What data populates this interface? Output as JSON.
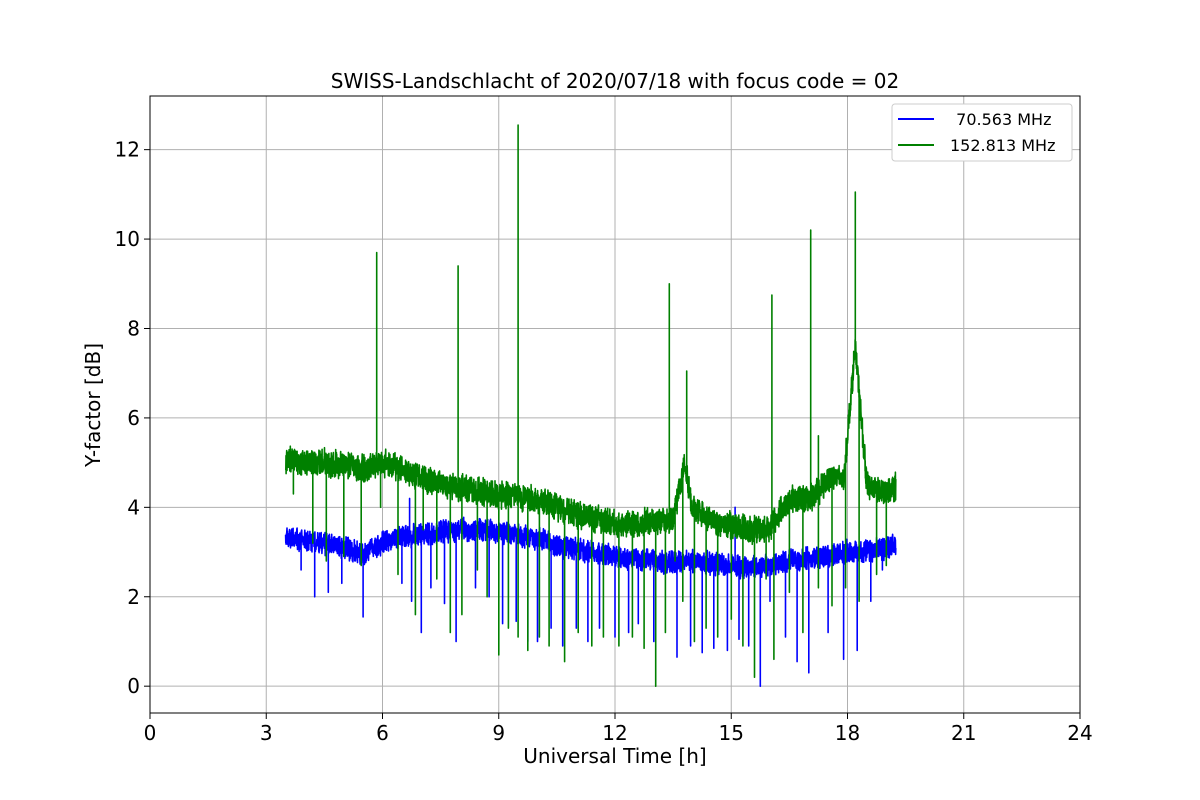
{
  "chart_data": {
    "type": "line",
    "title": "SWISS-Landschlacht of 2020/07/18 with focus code = 02",
    "xlabel": "Universal Time [h]",
    "ylabel": "Y-factor [dB]",
    "xlim": [
      0,
      24
    ],
    "ylim": [
      -0.6,
      13.2
    ],
    "xticks": [
      0,
      3,
      6,
      9,
      12,
      15,
      18,
      21,
      24
    ],
    "yticks": [
      0,
      2,
      4,
      6,
      8,
      10,
      12
    ],
    "grid": true,
    "legend_position": "top-right",
    "series": [
      {
        "name": "  70.563 MHz",
        "color": "#0000ff",
        "x": [
          3.5,
          4.0,
          4.5,
          5.0,
          5.5,
          6.0,
          6.5,
          7.0,
          7.5,
          8.0,
          8.5,
          9.0,
          9.5,
          10.0,
          10.5,
          11.0,
          11.5,
          12.0,
          12.5,
          13.0,
          13.5,
          14.0,
          14.5,
          15.0,
          15.5,
          16.0,
          16.5,
          17.0,
          17.5,
          18.0,
          18.5,
          19.0,
          19.25
        ],
        "y": [
          3.3,
          3.25,
          3.2,
          3.1,
          2.95,
          3.2,
          3.35,
          3.4,
          3.45,
          3.5,
          3.5,
          3.45,
          3.4,
          3.3,
          3.15,
          3.05,
          3.0,
          2.9,
          2.85,
          2.8,
          2.75,
          2.8,
          2.75,
          2.7,
          2.65,
          2.7,
          2.8,
          2.85,
          2.9,
          3.0,
          3.0,
          3.1,
          3.15
        ],
        "dips_x": [
          3.9,
          4.25,
          4.6,
          4.95,
          5.5,
          6.5,
          6.75,
          7.0,
          7.25,
          7.6,
          7.9,
          8.4,
          8.75,
          9.1,
          9.45,
          9.75,
          10.0,
          10.35,
          10.65,
          11.0,
          11.3,
          11.6,
          12.0,
          12.35,
          12.6,
          13.0,
          13.6,
          13.95,
          14.25,
          14.55,
          14.9,
          15.2,
          15.45,
          15.75,
          16.0,
          16.4,
          16.7,
          17.0,
          17.5,
          17.9,
          18.25,
          18.6,
          18.9
        ],
        "dips_y": [
          2.6,
          2.0,
          2.1,
          2.3,
          1.55,
          2.3,
          1.9,
          1.2,
          2.2,
          1.85,
          1.0,
          2.2,
          2.0,
          1.4,
          1.45,
          1.0,
          1.0,
          1.3,
          0.9,
          1.3,
          1.0,
          1.3,
          1.1,
          1.2,
          1.4,
          1.0,
          0.65,
          0.9,
          0.75,
          0.85,
          0.8,
          1.05,
          0.9,
          0.0,
          1.9,
          1.1,
          0.55,
          0.3,
          1.2,
          0.6,
          0.8,
          1.9,
          2.6
        ],
        "spikes_x": [
          6.7,
          15.1
        ],
        "spikes_y": [
          4.2,
          4.0
        ]
      },
      {
        "name": "152.813 MHz",
        "color": "#008000",
        "x": [
          3.5,
          4.0,
          4.5,
          5.0,
          5.5,
          6.0,
          6.5,
          7.0,
          7.5,
          8.0,
          8.5,
          9.0,
          9.5,
          10.0,
          10.5,
          11.0,
          11.5,
          12.0,
          12.5,
          13.0,
          13.5,
          13.8,
          14.0,
          14.5,
          15.0,
          15.5,
          16.0,
          16.5,
          17.0,
          17.3,
          17.6,
          17.9,
          18.2,
          18.5,
          19.0,
          19.25
        ],
        "y": [
          5.05,
          5.05,
          5.0,
          4.95,
          4.85,
          5.0,
          4.85,
          4.65,
          4.5,
          4.45,
          4.35,
          4.3,
          4.25,
          4.15,
          4.0,
          3.85,
          3.75,
          3.65,
          3.6,
          3.7,
          3.7,
          5.0,
          4.0,
          3.7,
          3.6,
          3.5,
          3.55,
          4.2,
          4.2,
          4.4,
          4.75,
          4.6,
          7.6,
          4.5,
          4.3,
          4.5
        ],
        "spikes_x": [
          5.85,
          7.95,
          9.5,
          13.4,
          13.85,
          16.05,
          17.05,
          17.25,
          18.2
        ],
        "spikes_y": [
          9.7,
          9.4,
          12.55,
          9.0,
          7.05,
          8.75,
          10.2,
          5.6,
          11.05
        ],
        "dips_x": [
          3.7,
          4.2,
          4.55,
          5.0,
          5.45,
          5.95,
          6.4,
          6.85,
          7.05,
          7.4,
          7.75,
          8.05,
          8.45,
          8.7,
          9.0,
          9.25,
          9.5,
          9.75,
          10.05,
          10.3,
          10.7,
          11.05,
          11.4,
          11.7,
          12.1,
          12.45,
          12.75,
          13.05,
          13.3,
          13.55,
          13.75,
          14.05,
          14.35,
          14.65,
          15.0,
          15.3,
          15.6,
          15.9,
          16.1,
          16.5,
          16.85,
          17.25,
          17.6,
          17.95,
          18.3,
          18.75,
          19.0
        ],
        "dips_y": [
          4.3,
          3.2,
          2.8,
          2.9,
          2.7,
          4.0,
          2.5,
          1.6,
          3.5,
          2.4,
          1.2,
          1.6,
          2.6,
          2.0,
          0.7,
          1.3,
          1.1,
          0.8,
          1.1,
          0.9,
          0.55,
          1.2,
          0.9,
          1.1,
          0.9,
          1.1,
          0.85,
          0.0,
          1.2,
          2.8,
          1.9,
          1.0,
          1.3,
          1.1,
          1.5,
          0.9,
          0.2,
          2.4,
          0.6,
          2.1,
          1.2,
          2.2,
          1.8,
          2.2,
          1.9,
          2.5,
          2.7
        ]
      }
    ]
  }
}
